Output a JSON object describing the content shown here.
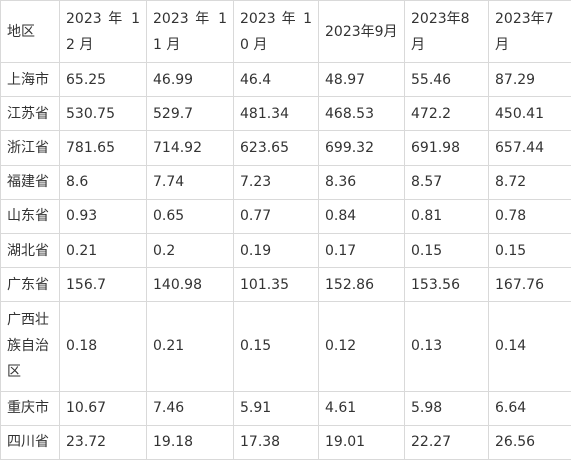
{
  "table": {
    "headers": [
      "地区",
      "2023 年 12 月",
      "2023 年 11 月",
      "2023 年 10 月",
      "2023年9月",
      "2023年8月",
      "2023年7月"
    ],
    "rows": [
      {
        "region": "上海市",
        "values": [
          "65.25",
          "46.99",
          "46.4",
          "48.97",
          "55.46",
          "87.29"
        ]
      },
      {
        "region": "江苏省",
        "values": [
          "530.75",
          "529.7",
          "481.34",
          "468.53",
          "472.2",
          "450.41"
        ]
      },
      {
        "region": "浙江省",
        "values": [
          "781.65",
          "714.92",
          "623.65",
          "699.32",
          "691.98",
          "657.44"
        ]
      },
      {
        "region": "福建省",
        "values": [
          "8.6",
          "7.74",
          "7.23",
          "8.36",
          "8.57",
          "8.72"
        ]
      },
      {
        "region": "山东省",
        "values": [
          "0.93",
          "0.65",
          "0.77",
          "0.84",
          "0.81",
          "0.78"
        ]
      },
      {
        "region": "湖北省",
        "values": [
          "0.21",
          "0.2",
          "0.19",
          "0.17",
          "0.15",
          "0.15"
        ]
      },
      {
        "region": "广东省",
        "values": [
          "156.7",
          "140.98",
          "101.35",
          "152.86",
          "153.56",
          "167.76"
        ]
      },
      {
        "region": "广西壮族自治区",
        "values": [
          "0.18",
          "0.21",
          "0.15",
          "0.12",
          "0.13",
          "0.14"
        ]
      },
      {
        "region": "重庆市",
        "values": [
          "10.67",
          "7.46",
          "5.91",
          "4.61",
          "5.98",
          "6.64"
        ]
      },
      {
        "region": "四川省",
        "values": [
          "23.72",
          "19.18",
          "17.38",
          "19.01",
          "22.27",
          "26.56"
        ]
      }
    ]
  }
}
